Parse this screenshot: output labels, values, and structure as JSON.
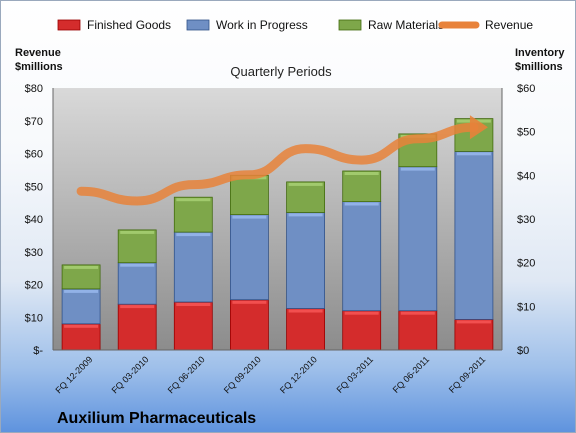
{
  "company": "Auxilium Pharmaceuticals",
  "chart_data": {
    "type": "bar",
    "subtype": "stacked-bar-with-line",
    "title": "Quarterly Periods",
    "categories": [
      "FQ 12-2009",
      "FQ 03-2010",
      "FQ 06-2010",
      "FQ 09-2010",
      "FQ 12-2010",
      "FQ 03-2011",
      "FQ 06-2011",
      "FQ 09-2011"
    ],
    "left_axis": {
      "label_line1": "Revenue",
      "label_line2": "$millions",
      "ylim": [
        0,
        80
      ],
      "ticks": [
        "$-",
        "$10",
        "$20",
        "$30",
        "$40",
        "$50",
        "$60",
        "$70",
        "$80"
      ]
    },
    "right_axis": {
      "label_line1": "Inventory",
      "label_line2": "$millions",
      "ylim": [
        0,
        60
      ],
      "ticks": [
        "$0",
        "$10",
        "$20",
        "$30",
        "$40",
        "$50",
        "$60"
      ]
    },
    "series": [
      {
        "name": "Finished Goods",
        "axis": "right",
        "color": "#d42c2c",
        "values": [
          6,
          10.5,
          11,
          11.5,
          9.5,
          9,
          9,
          7
        ]
      },
      {
        "name": "Work in Progress",
        "axis": "right",
        "color": "#6f8fc4",
        "values": [
          8,
          9.5,
          16,
          19.5,
          22,
          25,
          33,
          38.5
        ]
      },
      {
        "name": "Raw Materials",
        "axis": "right",
        "color": "#7ea74a",
        "values": [
          5.5,
          7.5,
          8,
          9,
          7,
          7,
          7.5,
          7.5
        ]
      },
      {
        "name": "Revenue",
        "axis": "left",
        "type": "line",
        "color": "#e8823a",
        "values": [
          48.5,
          45.5,
          50.5,
          53.5,
          61.5,
          58,
          64.5,
          68
        ]
      }
    ],
    "legend_position": "top",
    "grid": false
  }
}
